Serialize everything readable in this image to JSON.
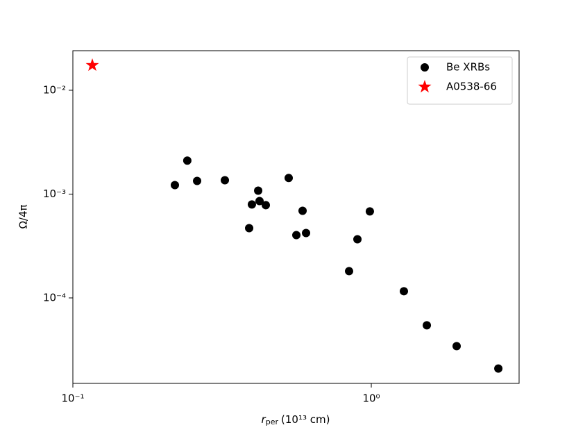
{
  "chart_data": {
    "type": "scatter",
    "x_label": {
      "symbol": "r",
      "subscript": "per",
      "text": "(10¹³ cm)"
    },
    "y_label": "Ω/4π",
    "log_x": true,
    "log_y": true,
    "xlim": [
      0.1,
      3.128
    ],
    "ylim": [
      1.503e-05,
      0.02404
    ],
    "xticks": [
      {
        "value": 0.1,
        "label": "10⁻¹"
      },
      {
        "value": 1,
        "label": "10⁰"
      }
    ],
    "yticks": [
      {
        "value": 0.0001,
        "label": "10⁻⁴"
      },
      {
        "value": 0.001,
        "label": "10⁻³"
      },
      {
        "value": 0.01,
        "label": "10⁻²"
      }
    ],
    "legend": "upper right",
    "series": [
      {
        "name": "Be XRBs",
        "color": "#000000",
        "marker": "circle",
        "x": [
          0.2197,
          0.2418,
          0.2608,
          0.3231,
          0.3897,
          0.398,
          0.4178,
          0.4222,
          0.4431,
          0.5287,
          0.5609,
          0.5885,
          0.6045,
          0.8425,
          0.8985,
          0.989,
          1.286,
          1.535,
          1.932,
          2.665
        ],
        "values": [
          0.00122,
          0.0021,
          0.00134,
          0.00136,
          0.00047,
          0.000794,
          0.00108,
          0.000857,
          0.000782,
          0.00143,
          0.000403,
          0.000691,
          0.000422,
          0.000181,
          0.000367,
          0.000681,
          0.000116,
          5.45e-05,
          3.43e-05,
          2.09e-05
        ]
      },
      {
        "name": "A0538-66",
        "color": "#ff0000",
        "marker": "star",
        "x": [
          0.1162
        ],
        "values": [
          0.0174
        ]
      }
    ]
  }
}
